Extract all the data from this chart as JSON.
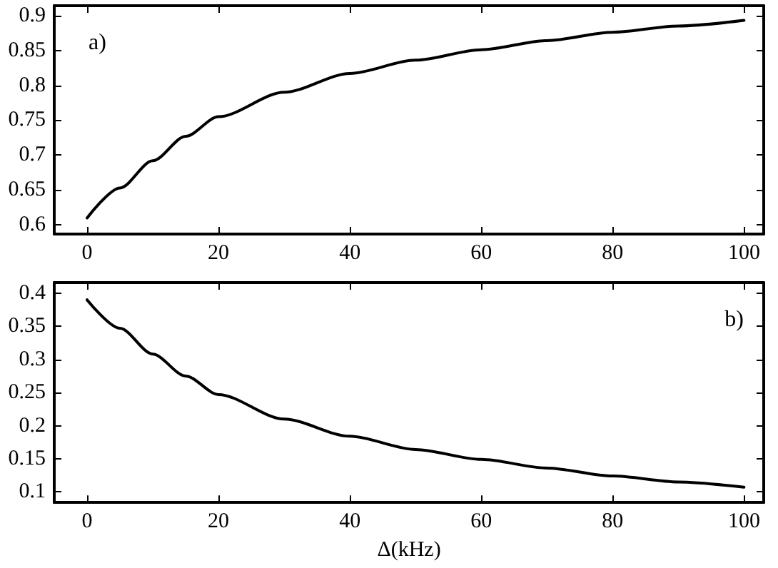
{
  "chart_data": [
    {
      "type": "line",
      "annotations": [
        "a)"
      ],
      "x": [
        0,
        5,
        10,
        15,
        20,
        30,
        40,
        50,
        60,
        70,
        80,
        90,
        100
      ],
      "series": [
        {
          "color": "#000000",
          "values": [
            0.61,
            0.653,
            0.692,
            0.727,
            0.755,
            0.79,
            0.817,
            0.836,
            0.851,
            0.864,
            0.876,
            0.885,
            0.893
          ]
        }
      ],
      "xlim": [
        -5,
        103
      ],
      "xticks": [
        0,
        20,
        40,
        60,
        80,
        100
      ],
      "ylim": [
        0.587,
        0.914
      ],
      "yticks": [
        0.6,
        0.65,
        0.7,
        0.75,
        0.8,
        0.85,
        0.9
      ],
      "marker": "none",
      "line_style": "solid",
      "grid": false
    },
    {
      "type": "line",
      "xlabel": "Δ(kHz)",
      "annotations": [
        "b)"
      ],
      "x": [
        0,
        5,
        10,
        15,
        20,
        30,
        40,
        50,
        60,
        70,
        80,
        90,
        100
      ],
      "series": [
        {
          "color": "#000000",
          "values": [
            0.39,
            0.347,
            0.308,
            0.275,
            0.247,
            0.21,
            0.184,
            0.164,
            0.149,
            0.136,
            0.124,
            0.115,
            0.107
          ]
        }
      ],
      "xlim": [
        -5,
        103
      ],
      "xticks": [
        0,
        20,
        40,
        60,
        80,
        100
      ],
      "ylim": [
        0.084,
        0.416
      ],
      "yticks": [
        0.1,
        0.15,
        0.2,
        0.25,
        0.3,
        0.35,
        0.4
      ],
      "marker": "none",
      "line_style": "solid",
      "grid": false
    }
  ]
}
